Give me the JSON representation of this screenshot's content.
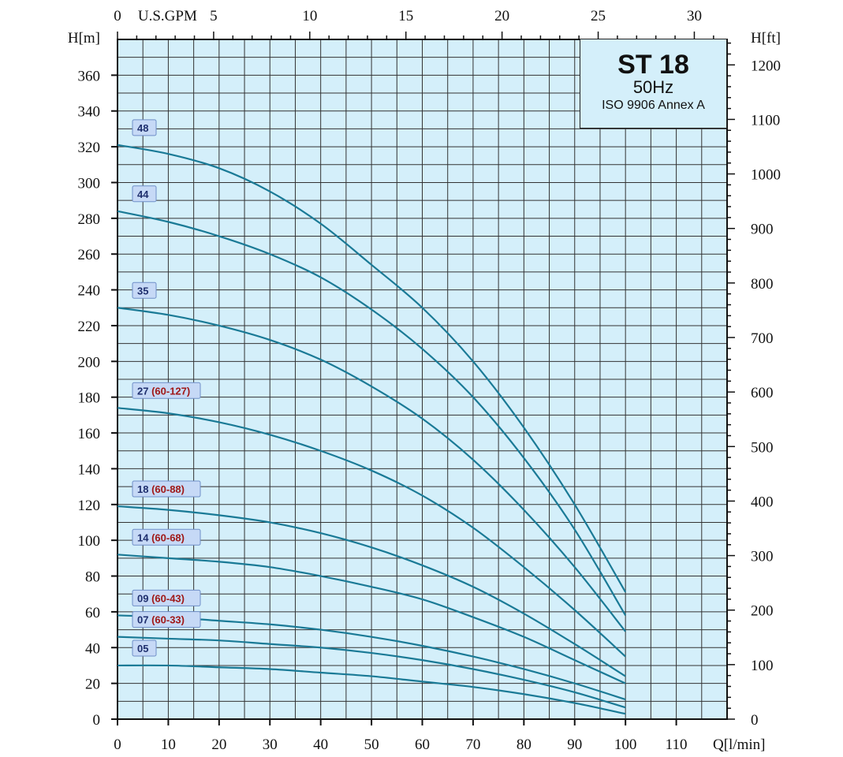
{
  "chart_data": {
    "type": "line",
    "title": "ST 18",
    "subtitle": "50Hz",
    "note": "ISO 9906 Annex A",
    "xlabel": "Q[l/min]",
    "ylabel": "H[m]",
    "x2label": "U.S.GPM",
    "y2label": "H[ft]",
    "xlim": [
      0,
      120
    ],
    "ylim": [
      0,
      380
    ],
    "x2lim_gpm": [
      0,
      31.7
    ],
    "y2lim_ft": [
      0,
      1247
    ],
    "xticks": [
      0,
      10,
      20,
      30,
      40,
      50,
      60,
      70,
      80,
      90,
      100,
      110
    ],
    "yticks": [
      0,
      20,
      40,
      60,
      80,
      100,
      120,
      140,
      160,
      180,
      200,
      220,
      240,
      260,
      280,
      300,
      320,
      340,
      360
    ],
    "x2ticks": [
      0,
      5,
      10,
      15,
      20,
      25,
      30
    ],
    "y2ticks": [
      0,
      100,
      200,
      300,
      400,
      500,
      600,
      700,
      800,
      900,
      1000,
      1100,
      1200
    ],
    "grid": true,
    "background": "#d4effa",
    "line_color": "#1a7a96",
    "x": [
      0,
      10,
      20,
      30,
      40,
      50,
      60,
      70,
      80,
      90,
      100
    ],
    "series": [
      {
        "name": "48",
        "range": "",
        "values": [
          321,
          316,
          308,
          295,
          277,
          254,
          230,
          200,
          163,
          120,
          71
        ]
      },
      {
        "name": "44",
        "range": "",
        "values": [
          284,
          278,
          270,
          260,
          247,
          229,
          207,
          180,
          146,
          106,
          58
        ]
      },
      {
        "name": "35",
        "range": "",
        "values": [
          230,
          226,
          220,
          212,
          201,
          186,
          168,
          145,
          117,
          85,
          49
        ]
      },
      {
        "name": "27",
        "range": "(60-127)",
        "values": [
          174,
          171,
          166,
          159,
          150,
          139,
          125,
          107,
          85,
          61,
          35
        ]
      },
      {
        "name": "18",
        "range": "(60-88)",
        "values": [
          119,
          117,
          114,
          110,
          104,
          96,
          86,
          74,
          59,
          42,
          24
        ]
      },
      {
        "name": "14",
        "range": "(60-68)",
        "values": [
          92,
          90,
          88,
          85,
          80,
          74,
          67,
          57,
          46,
          33,
          20
        ]
      },
      {
        "name": "09",
        "range": "(60-43)",
        "values": [
          58,
          57,
          55,
          53,
          50,
          46,
          41,
          35,
          28,
          20,
          11
        ]
      },
      {
        "name": "07",
        "range": "(60-33)",
        "values": [
          46,
          45,
          44,
          42,
          40,
          37,
          33,
          28,
          22,
          15,
          6.5
        ]
      },
      {
        "name": "05",
        "range": "",
        "values": [
          30,
          30,
          29,
          28,
          26,
          24,
          21,
          18,
          14,
          9,
          3
        ]
      }
    ]
  }
}
